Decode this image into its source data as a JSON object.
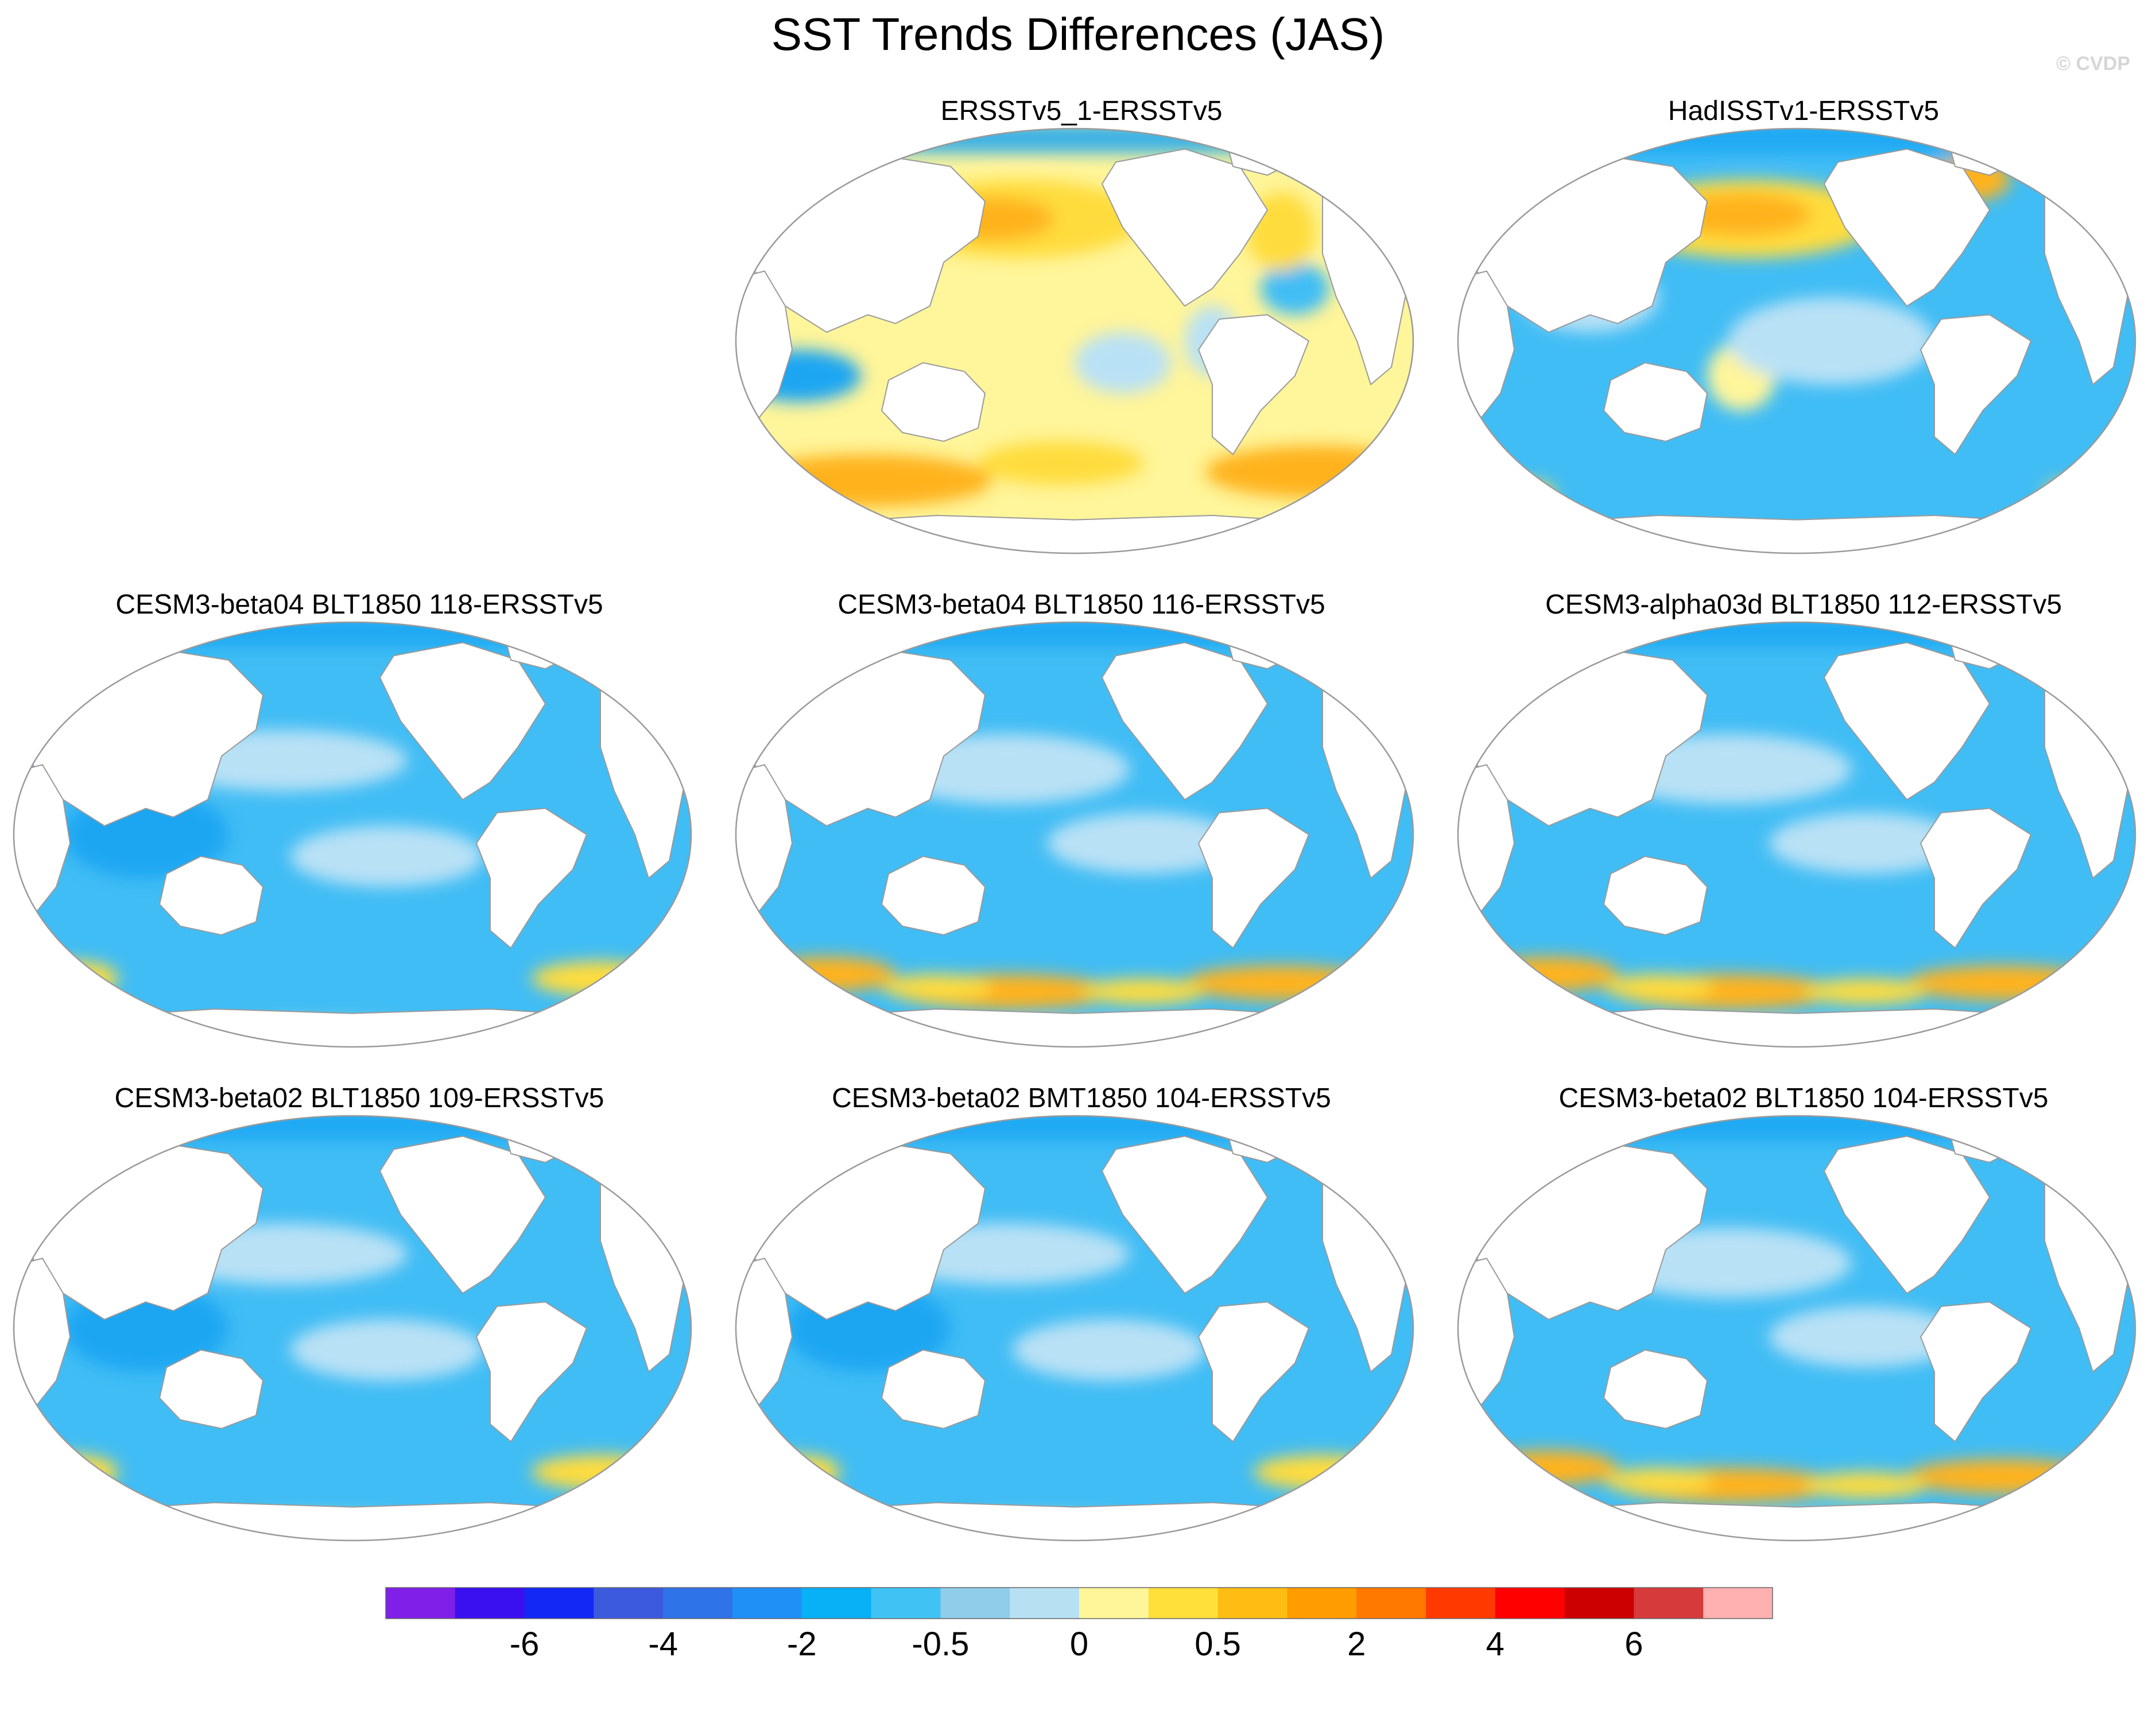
{
  "chart_data": {
    "type": "heatmap",
    "title": "SST Trends Differences (JAS)",
    "watermark": "© CVDP",
    "projection": "Robinson (Pacific-centred) world maps",
    "panels": [
      {
        "title": "ERSSTv5_1-ERSSTv5",
        "row": 0,
        "col": 1,
        "theme": "warm"
      },
      {
        "title": "HadISSTv1-ERSSTv5",
        "row": 0,
        "col": 2,
        "theme": "mixed"
      },
      {
        "title": "CESM3-beta04 BLT1850 118-ERSSTv5",
        "row": 1,
        "col": 0,
        "theme": "cool"
      },
      {
        "title": "CESM3-beta04 BLT1850 116-ERSSTv5",
        "row": 1,
        "col": 1,
        "theme": "cool-south-warm"
      },
      {
        "title": "CESM3-alpha03d BLT1850 112-ERSSTv5",
        "row": 1,
        "col": 2,
        "theme": "cool-south-warm"
      },
      {
        "title": "CESM3-beta02 BLT1850 109-ERSSTv5",
        "row": 2,
        "col": 0,
        "theme": "cool"
      },
      {
        "title": "CESM3-beta02 BMT1850 104-ERSSTv5",
        "row": 2,
        "col": 1,
        "theme": "cool"
      },
      {
        "title": "CESM3-beta02 BLT1850 104-ERSSTv5",
        "row": 2,
        "col": 2,
        "theme": "cool-south-warm"
      }
    ],
    "colorbar": {
      "tick_labels": [
        "-6",
        "-4",
        "-2",
        "-0.5",
        "0",
        "0.5",
        "2",
        "4",
        "6"
      ],
      "colors": [
        "#7f1fe8",
        "#3a10f0",
        "#1428f5",
        "#3c5ade",
        "#2f73e8",
        "#1f90f6",
        "#08b0f5",
        "#40c2f5",
        "#8fcdeb",
        "#b8e0f3",
        "#fff599",
        "#ffdf3a",
        "#ffbd14",
        "#ff9c00",
        "#ff7800",
        "#ff3a00",
        "#ff0000",
        "#cc0000",
        "#d63a3a",
        "#ffb0b0"
      ]
    },
    "palette": {
      "ocean_base_cool": "#41bdf5",
      "ocean_mid_blue": "#1aa6f2",
      "light_blue": "#b9e1f5",
      "pale_yellow": "#fff59a",
      "yellow": "#ffdc3c",
      "orange": "#ffb21a",
      "land": "#ffffff",
      "outline": "#9a9a9a"
    }
  }
}
